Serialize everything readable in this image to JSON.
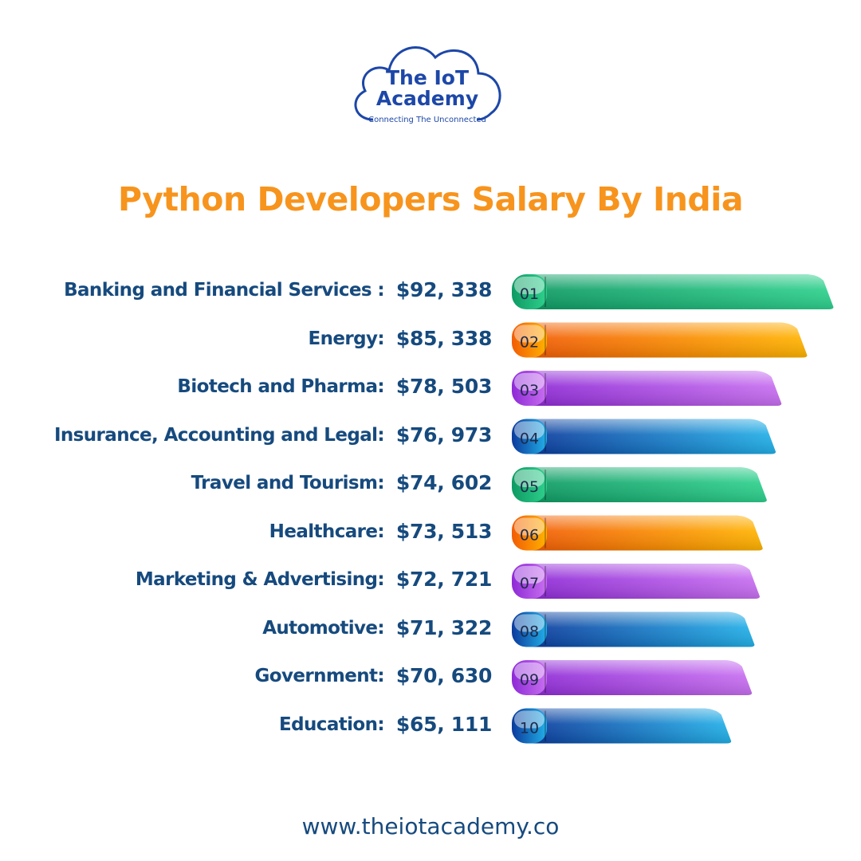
{
  "logo": {
    "line1": "The IoT",
    "line2": "Academy",
    "tagline": "Connecting The Unconnected"
  },
  "footer": {
    "url": "www.theiotacademy.co"
  },
  "colors": {
    "title": "#f7941d",
    "text": "#164a7e",
    "green": [
      "#0e9a63",
      "#2ed08d"
    ],
    "orange": [
      "#f25c05",
      "#ffb300"
    ],
    "purple": [
      "#8e2ad6",
      "#c86ff0"
    ],
    "blue": [
      "#0b3a9c",
      "#22b0e8"
    ]
  },
  "chart_data": {
    "type": "bar",
    "title": "Python Developers Salary By India",
    "orientation": "horizontal",
    "categories": [
      "Banking and Financial Services :",
      "Energy:",
      "Biotech and Pharma:",
      "Insurance, Accounting and Legal:",
      "Travel and Tourism:",
      "Healthcare:",
      "Marketing & Advertising:",
      "Automotive:",
      "Government:",
      "Education:"
    ],
    "value_labels": [
      "$92, 338",
      "$85, 338",
      "$78, 503",
      "$76, 973",
      "$74, 602",
      "$73, 513",
      "$72, 721",
      "$71, 322",
      "$70, 630",
      "$65, 111"
    ],
    "values": [
      92338,
      85338,
      78503,
      76973,
      74602,
      73513,
      72721,
      71322,
      70630,
      65111
    ],
    "ranks": [
      "01",
      "02",
      "03",
      "04",
      "05",
      "06",
      "07",
      "08",
      "09",
      "10"
    ],
    "bar_colors": [
      "green",
      "orange",
      "purple",
      "blue",
      "green",
      "orange",
      "purple",
      "blue",
      "purple",
      "blue"
    ],
    "xlim": [
      45000,
      92338
    ]
  }
}
